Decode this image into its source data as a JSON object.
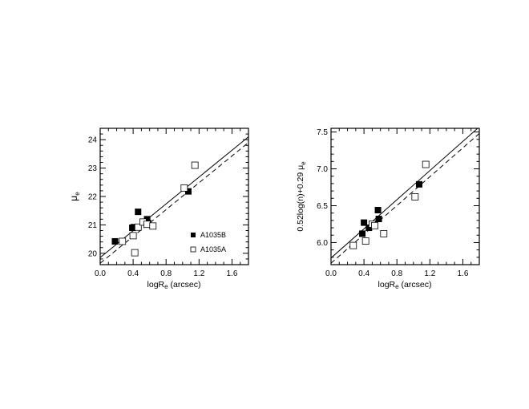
{
  "chart_data": [
    {
      "type": "scatter",
      "xlabel_main": "logR",
      "xlabel_sub": "e",
      "xlabel_rest": " (arcsec)",
      "ylabel_main": "μ",
      "ylabel_sub": "e",
      "xlim": [
        0.0,
        1.8
      ],
      "ylim": [
        19.6,
        24.4
      ],
      "xticks": [
        "0.0",
        "0.4",
        "0.8",
        "1.2",
        "1.6"
      ],
      "xtick_values": [
        0.0,
        0.4,
        0.8,
        1.2,
        1.6
      ],
      "yticks": [
        "20",
        "21",
        "22",
        "23",
        "24"
      ],
      "ytick_values": [
        20,
        21,
        22,
        23,
        24
      ],
      "legend": [
        {
          "label": "A1035B",
          "marker": "filled-square"
        },
        {
          "label": "A1035A",
          "marker": "open-square"
        }
      ],
      "legend_placement": "lower-right",
      "series": [
        {
          "name": "A1035B",
          "marker": "filled-square",
          "points": [
            [
              0.18,
              20.42
            ],
            [
              0.39,
              20.9
            ],
            [
              0.41,
              20.92
            ],
            [
              0.46,
              21.46
            ],
            [
              0.57,
              21.2
            ],
            [
              0.58,
              21.07
            ],
            [
              1.07,
              22.18
            ]
          ]
        },
        {
          "name": "A1035A",
          "marker": "open-square",
          "points": [
            [
              0.27,
              20.42
            ],
            [
              0.4,
              20.62
            ],
            [
              0.42,
              20.02
            ],
            [
              0.46,
              20.92
            ],
            [
              0.52,
              21.1
            ],
            [
              0.57,
              21.02
            ],
            [
              0.64,
              20.96
            ],
            [
              1.02,
              22.3
            ],
            [
              1.15,
              23.1
            ]
          ]
        }
      ],
      "lines": [
        {
          "style": "solid",
          "x": [
            0.0,
            1.8
          ],
          "y": [
            19.85,
            24.1
          ]
        },
        {
          "style": "dashed",
          "x": [
            0.0,
            1.8
          ],
          "y": [
            19.65,
            23.9
          ]
        }
      ]
    },
    {
      "type": "scatter",
      "xlabel_main": "logR",
      "xlabel_sub": "e",
      "xlabel_rest": " (arcsec)",
      "ylabel_main": "0.52log(n)+0.29 μ",
      "ylabel_sub": "e",
      "xlim": [
        0.0,
        1.8
      ],
      "ylim": [
        5.7,
        7.55
      ],
      "xticks": [
        "0.0",
        "0.4",
        "0.8",
        "1.2",
        "1.6"
      ],
      "xtick_values": [
        0.0,
        0.4,
        0.8,
        1.2,
        1.6
      ],
      "yticks": [
        "6.0",
        "6.5",
        "7.0",
        "7.5"
      ],
      "ytick_values": [
        6.0,
        6.5,
        7.0,
        7.5
      ],
      "series": [
        {
          "name": "A1035B",
          "marker": "filled-square",
          "points": [
            [
              0.38,
              6.12
            ],
            [
              0.4,
              6.27
            ],
            [
              0.46,
              6.2
            ],
            [
              0.57,
              6.44
            ],
            [
              0.58,
              6.32
            ],
            [
              1.07,
              6.79
            ]
          ]
        },
        {
          "name": "A1035A",
          "marker": "open-square",
          "points": [
            [
              0.27,
              5.96
            ],
            [
              0.42,
              6.02
            ],
            [
              0.5,
              6.25
            ],
            [
              0.53,
              6.23
            ],
            [
              0.64,
              6.12
            ],
            [
              1.02,
              6.62
            ],
            [
              1.15,
              7.06
            ]
          ]
        }
      ],
      "lines": [
        {
          "style": "solid",
          "x": [
            0.0,
            1.8
          ],
          "y": [
            5.79,
            7.57
          ]
        },
        {
          "style": "dashed",
          "x": [
            0.0,
            1.8
          ],
          "y": [
            5.72,
            7.48
          ]
        }
      ]
    }
  ]
}
